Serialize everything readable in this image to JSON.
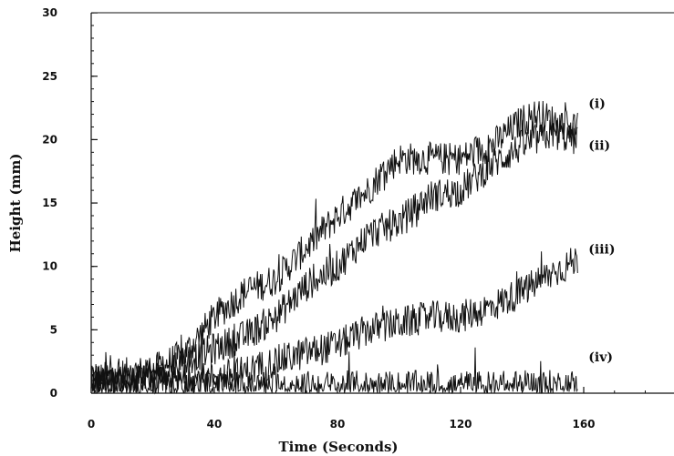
{
  "chart_data": {
    "type": "line",
    "title": "",
    "xlabel": "Time (Seconds)",
    "ylabel": "Height (mm)",
    "xlim": [
      0,
      188
    ],
    "ylim": [
      0,
      30
    ],
    "x_ticks": [
      0,
      40,
      80,
      120,
      160
    ],
    "y_ticks": [
      0,
      5,
      10,
      15,
      20,
      25,
      30
    ],
    "grid": false,
    "legend": "none",
    "noisy": true,
    "series": [
      {
        "name": "(i)",
        "x": [
          0,
          10,
          20,
          30,
          40,
          50,
          60,
          70,
          80,
          90,
          95,
          100,
          110,
          120,
          130,
          140,
          145,
          150,
          158
        ],
        "y": [
          1,
          1.5,
          1.8,
          3,
          6,
          8,
          9,
          11.5,
          14,
          16,
          17.5,
          18.5,
          18.5,
          18.5,
          19.5,
          21.5,
          22,
          21.5,
          21
        ]
      },
      {
        "name": "(ii)",
        "x": [
          0,
          10,
          20,
          30,
          40,
          50,
          60,
          70,
          80,
          90,
          100,
          110,
          120,
          130,
          140,
          150,
          158
        ],
        "y": [
          1,
          1,
          1.5,
          2.5,
          3.5,
          4.5,
          6,
          8.5,
          10,
          12.5,
          13.5,
          15.5,
          16,
          18,
          19.5,
          20.5,
          20
        ]
      },
      {
        "name": "(iii)",
        "x": [
          0,
          10,
          20,
          30,
          40,
          50,
          60,
          70,
          80,
          90,
          100,
          110,
          120,
          130,
          140,
          150,
          158
        ],
        "y": [
          1,
          0.8,
          0.8,
          1,
          1.2,
          1.7,
          2.5,
          3.2,
          3.8,
          5,
          5.5,
          6,
          6,
          6.8,
          8,
          9.5,
          10.5
        ]
      },
      {
        "name": "(iv)",
        "x": [
          0,
          20,
          40,
          60,
          80,
          100,
          120,
          140,
          158
        ],
        "y": [
          0.5,
          0.5,
          0.5,
          0.5,
          0.5,
          0.5,
          0.5,
          0.5,
          0.6
        ]
      }
    ]
  }
}
